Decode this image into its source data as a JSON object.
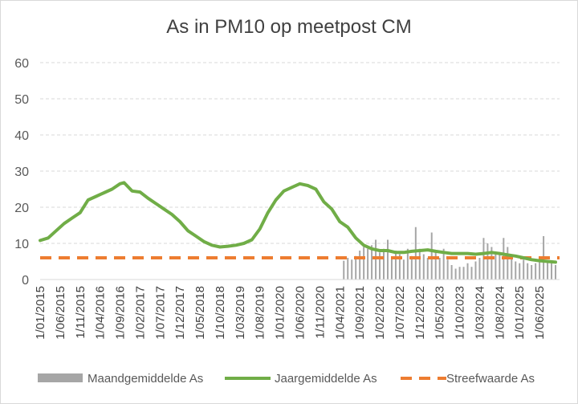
{
  "chart_data": {
    "type": "bar+line",
    "title": "As in PM10 op meetpost CM",
    "xlabel": "",
    "ylabel": "",
    "ylim": [
      0,
      60
    ],
    "yticks": [
      0,
      10,
      20,
      30,
      40,
      50,
      60
    ],
    "xlim": [
      "2015-01-01",
      "2025-11-01"
    ],
    "xticks": [
      "1/01/2015",
      "1/06/2015",
      "1/11/2015",
      "1/04/2016",
      "1/09/2016",
      "1/02/2017",
      "1/07/2017",
      "1/12/2017",
      "1/05/2018",
      "1/10/2018",
      "1/03/2019",
      "1/08/2019",
      "1/01/2020",
      "1/06/2020",
      "1/11/2020",
      "1/04/2021",
      "1/09/2021",
      "1/02/2022",
      "1/07/2022",
      "1/12/2022",
      "1/05/2023",
      "1/10/2023",
      "1/03/2024",
      "1/08/2024",
      "1/01/2025",
      "1/06/2025"
    ],
    "grid": "horizontal-dashed",
    "legend_position": "bottom",
    "colors": {
      "monthly": "#a6a6a6",
      "yearly": "#70ad47",
      "target": "#ed7d31"
    },
    "series": [
      {
        "name": "Maandgemiddelde As",
        "type": "bar",
        "x": [
          "2021-05",
          "2021-06",
          "2021-07",
          "2021-08",
          "2021-09",
          "2021-10",
          "2021-11",
          "2021-12",
          "2022-01",
          "2022-02",
          "2022-03",
          "2022-04",
          "2022-05",
          "2022-06",
          "2022-07",
          "2022-08",
          "2022-09",
          "2022-10",
          "2022-11",
          "2022-12",
          "2023-01",
          "2023-02",
          "2023-03",
          "2023-04",
          "2023-05",
          "2023-06",
          "2023-07",
          "2023-08",
          "2023-09",
          "2023-10",
          "2023-11",
          "2023-12",
          "2024-01",
          "2024-02",
          "2024-03",
          "2024-04",
          "2024-05",
          "2024-06",
          "2024-07",
          "2024-08",
          "2024-09",
          "2024-10",
          "2024-11",
          "2024-12",
          "2025-01",
          "2025-02",
          "2025-03",
          "2025-04",
          "2025-05",
          "2025-06",
          "2025-07",
          "2025-08",
          "2025-09",
          "2025-10"
        ],
        "values": [
          5.2,
          6.0,
          5.5,
          6.5,
          8.0,
          9.0,
          8.5,
          9.5,
          11.0,
          7.5,
          8.5,
          11.0,
          6.0,
          8.0,
          7.0,
          5.5,
          8.5,
          6.5,
          14.5,
          8.5,
          7.0,
          6.0,
          13.0,
          7.5,
          6.0,
          8.5,
          5.5,
          4.0,
          3.0,
          3.5,
          3.5,
          4.5,
          3.5,
          5.0,
          6.0,
          11.5,
          10.0,
          9.0,
          7.5,
          7.0,
          11.5,
          9.0,
          6.0,
          5.0,
          4.5,
          5.5,
          4.5,
          4.0,
          4.5,
          6.0,
          12.0,
          5.0,
          4.5,
          4.0
        ]
      },
      {
        "name": "Jaargemiddelde As",
        "type": "line",
        "x": [
          "2015-01",
          "2015-03",
          "2015-05",
          "2015-07",
          "2015-09",
          "2015-11",
          "2016-01",
          "2016-03",
          "2016-05",
          "2016-07",
          "2016-09",
          "2016-10",
          "2016-12",
          "2017-02",
          "2017-04",
          "2017-06",
          "2017-08",
          "2017-10",
          "2017-12",
          "2018-02",
          "2018-04",
          "2018-06",
          "2018-08",
          "2018-10",
          "2018-12",
          "2019-02",
          "2019-04",
          "2019-06",
          "2019-08",
          "2019-10",
          "2019-12",
          "2020-02",
          "2020-04",
          "2020-06",
          "2020-08",
          "2020-10",
          "2020-12",
          "2021-02",
          "2021-04",
          "2021-06",
          "2021-08",
          "2021-10",
          "2021-12",
          "2022-02",
          "2022-04",
          "2022-06",
          "2022-08",
          "2022-10",
          "2022-12",
          "2023-02",
          "2023-04",
          "2023-06",
          "2023-08",
          "2023-10",
          "2023-12",
          "2024-02",
          "2024-04",
          "2024-06",
          "2024-08",
          "2024-10",
          "2024-12",
          "2025-02",
          "2025-04",
          "2025-06",
          "2025-08",
          "2025-10"
        ],
        "values": [
          10.8,
          11.5,
          13.5,
          15.5,
          17.0,
          18.5,
          22.0,
          23.0,
          24.0,
          25.0,
          26.5,
          26.8,
          24.5,
          24.2,
          22.5,
          21.0,
          19.5,
          18.0,
          16.0,
          13.5,
          12.0,
          10.5,
          9.5,
          9.0,
          9.2,
          9.5,
          10.0,
          11.0,
          14.0,
          18.5,
          22.0,
          24.5,
          25.5,
          26.5,
          26.0,
          25.0,
          21.5,
          19.5,
          16.0,
          14.5,
          11.5,
          9.5,
          8.5,
          8.0,
          8.0,
          7.5,
          7.5,
          7.8,
          8.0,
          8.2,
          7.8,
          7.5,
          7.2,
          7.2,
          7.2,
          7.0,
          7.2,
          7.5,
          7.2,
          6.8,
          6.5,
          6.0,
          5.5,
          5.2,
          5.0,
          4.8
        ]
      },
      {
        "name": "Streefwaarde As",
        "type": "line-dashed",
        "x": [
          "2015-01-01",
          "2025-11-01"
        ],
        "values": [
          6,
          6
        ]
      }
    ]
  }
}
